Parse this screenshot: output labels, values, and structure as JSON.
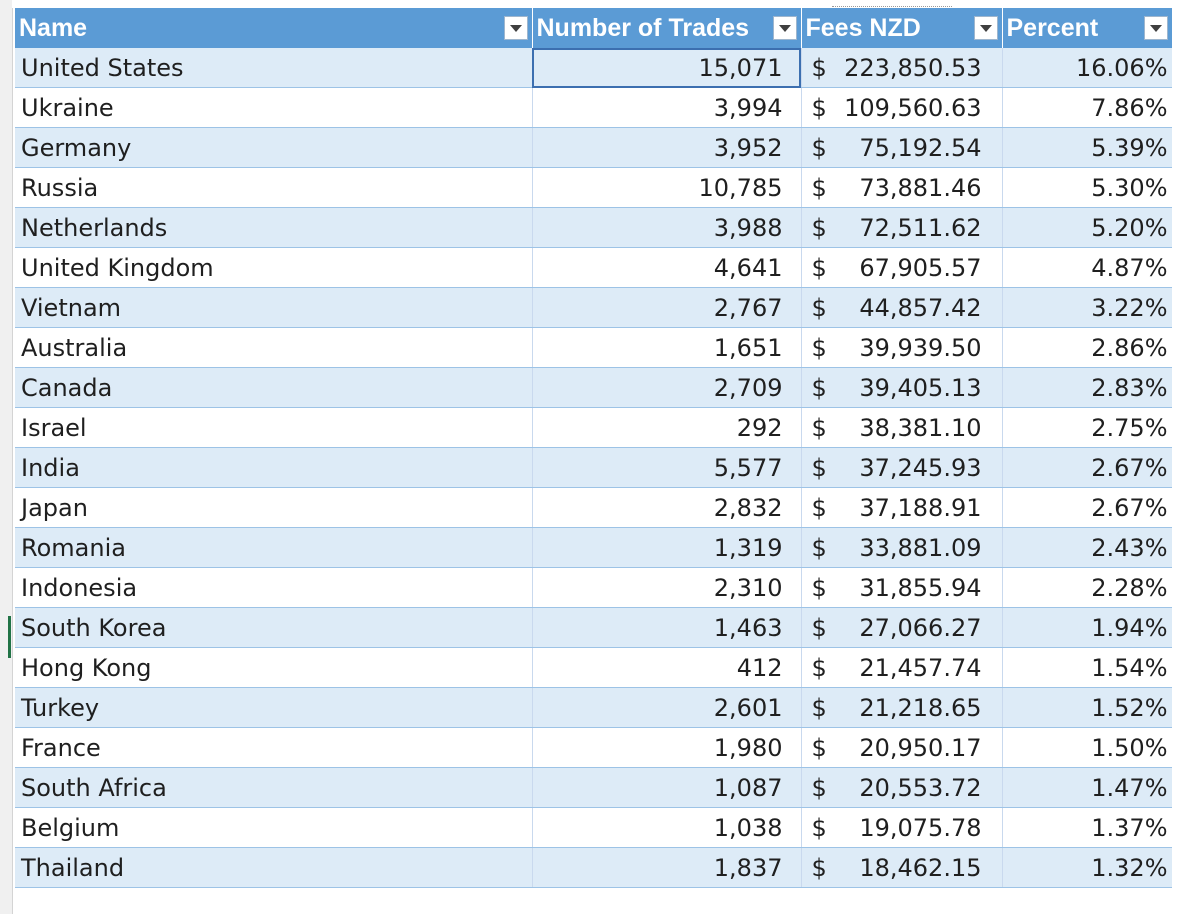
{
  "table": {
    "headers": [
      "Name",
      "Number of Trades",
      "Fees NZD",
      "Percent"
    ],
    "currency_symbol": "$",
    "rows": [
      {
        "name": "United States",
        "trades": "15,071",
        "fees": "223,850.53",
        "percent": "16.06%"
      },
      {
        "name": "Ukraine",
        "trades": "3,994",
        "fees": "109,560.63",
        "percent": "7.86%"
      },
      {
        "name": "Germany",
        "trades": "3,952",
        "fees": "75,192.54",
        "percent": "5.39%"
      },
      {
        "name": "Russia",
        "trades": "10,785",
        "fees": "73,881.46",
        "percent": "5.30%"
      },
      {
        "name": "Netherlands",
        "trades": "3,988",
        "fees": "72,511.62",
        "percent": "5.20%"
      },
      {
        "name": "United Kingdom",
        "trades": "4,641",
        "fees": "67,905.57",
        "percent": "4.87%"
      },
      {
        "name": "Vietnam",
        "trades": "2,767",
        "fees": "44,857.42",
        "percent": "3.22%"
      },
      {
        "name": "Australia",
        "trades": "1,651",
        "fees": "39,939.50",
        "percent": "2.86%"
      },
      {
        "name": "Canada",
        "trades": "2,709",
        "fees": "39,405.13",
        "percent": "2.83%"
      },
      {
        "name": "Israel",
        "trades": "292",
        "fees": "38,381.10",
        "percent": "2.75%"
      },
      {
        "name": "India",
        "trades": "5,577",
        "fees": "37,245.93",
        "percent": "2.67%"
      },
      {
        "name": "Japan",
        "trades": "2,832",
        "fees": "37,188.91",
        "percent": "2.67%"
      },
      {
        "name": "Romania",
        "trades": "1,319",
        "fees": "33,881.09",
        "percent": "2.43%"
      },
      {
        "name": "Indonesia",
        "trades": "2,310",
        "fees": "31,855.94",
        "percent": "2.28%"
      },
      {
        "name": "South Korea",
        "trades": "1,463",
        "fees": "27,066.27",
        "percent": "1.94%"
      },
      {
        "name": "Hong Kong",
        "trades": "412",
        "fees": "21,457.74",
        "percent": "1.54%"
      },
      {
        "name": "Turkey",
        "trades": "2,601",
        "fees": "21,218.65",
        "percent": "1.52%"
      },
      {
        "name": "France",
        "trades": "1,980",
        "fees": "20,950.17",
        "percent": "1.50%"
      },
      {
        "name": "South Africa",
        "trades": "1,087",
        "fees": "20,553.72",
        "percent": "1.47%"
      },
      {
        "name": "Belgium",
        "trades": "1,038",
        "fees": "19,075.78",
        "percent": "1.37%"
      },
      {
        "name": "Thailand",
        "trades": "1,837",
        "fees": "18,462.15",
        "percent": "1.32%"
      }
    ]
  },
  "icons": {
    "filter": "filter-dropdown-icon"
  },
  "colors": {
    "header_bg": "#5b9bd5",
    "band_row": "#ddebf7",
    "selection": "#3c6fb0"
  }
}
